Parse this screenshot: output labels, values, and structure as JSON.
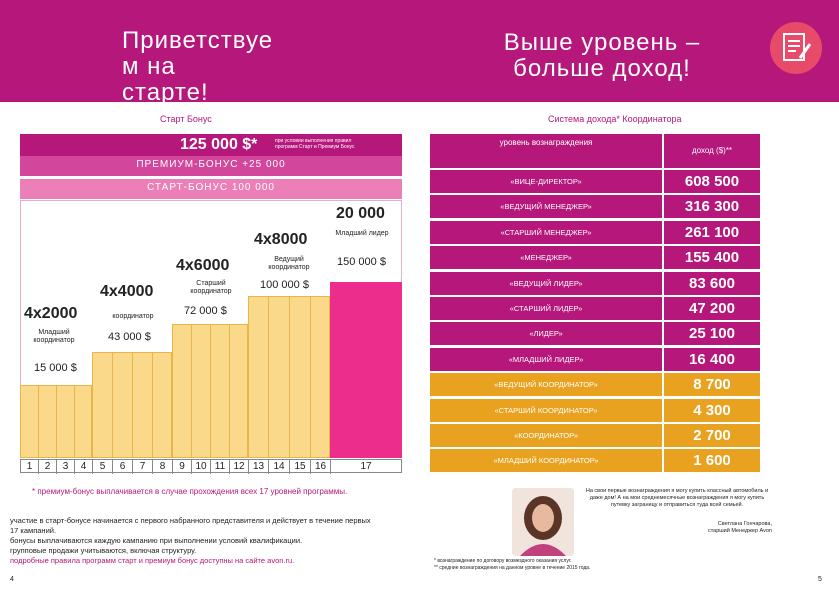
{
  "header": {
    "left_title": "Приветствуе\nм на\nстарте!",
    "right_title": "Выше уровень –\nбольше доход!",
    "icon": "document-edit-icon"
  },
  "left": {
    "section_title": "Старт Бонус",
    "bonus_amount": "125 000 $*",
    "bonus_note": "при условии выполнения правил программ Старт и Премиум Бонус",
    "premium_bar": "ПРЕМИУМ-БОНУС +25 000",
    "start_bar": "СТАРТ-БОНУС 100 000",
    "steps": [
      {
        "mult": "4x2000",
        "role": "Младший координатор",
        "amount": "15 000 $"
      },
      {
        "mult": "4x4000",
        "role": "координатор",
        "amount": "43 000 $"
      },
      {
        "mult": "4x6000",
        "role": "Старший координатор",
        "amount": "72 000 $"
      },
      {
        "mult": "4x8000",
        "role": "Ведущий координатор",
        "amount": "100 000 $"
      },
      {
        "mult": "20 000",
        "role": "Младший лидер",
        "amount": "150 000 $"
      }
    ],
    "campaigns": [
      "1",
      "2",
      "3",
      "4",
      "5",
      "6",
      "7",
      "8",
      "9",
      "10",
      "11",
      "12",
      "13",
      "14",
      "15",
      "16",
      "17"
    ],
    "footnote": "* премиум-бонус выплачивается в случае прохождения всех 17 уровней программы.",
    "notes": [
      "участие в старт-бонусе начинается с первого набранного представителя и действует в течение первых 17 кампаний.",
      "бонусы выплачиваются каждую кампанию при выполнении условий квалификации.",
      "групповые продажи учитываются, включая структуру."
    ],
    "rules_link": "подробные правила программ старт и премиум бонус доступны на сайте avon.ru.",
    "page_number": "4"
  },
  "right": {
    "section_title": "Система дохода* Координатора",
    "col_level": "уровень вознаграждения",
    "col_income": "доход ($)**",
    "rows": [
      {
        "level": "«ВИЦЕ-ДИРЕКТОР»",
        "income": "608 500",
        "tier": "pink"
      },
      {
        "level": "«ВЕДУЩИЙ МЕНЕДЖЕР»",
        "income": "316 300",
        "tier": "pink"
      },
      {
        "level": "«СТАРШИЙ МЕНЕДЖЕР»",
        "income": "261 100",
        "tier": "pink"
      },
      {
        "level": "«МЕНЕДЖЕР»",
        "income": "155 400",
        "tier": "pink"
      },
      {
        "level": "«ВЕДУЩИЙ ЛИДЕР»",
        "income": "83 600",
        "tier": "pink"
      },
      {
        "level": "«СТАРШИЙ ЛИДЕР»",
        "income": "47 200",
        "tier": "pink"
      },
      {
        "level": "«ЛИДЕР»",
        "income": "25 100",
        "tier": "pink"
      },
      {
        "level": "«МЛАДШИЙ ЛИДЕР»",
        "income": "16 400",
        "tier": "pink"
      },
      {
        "level": "«ВЕДУЩИЙ КООРДИНАТОР»",
        "income": "8 700",
        "tier": "gold"
      },
      {
        "level": "«СТАРШИЙ КООРДИНАТОР»",
        "income": "4 300",
        "tier": "gold"
      },
      {
        "level": "«КООРДИНАТОР»",
        "income": "2 700",
        "tier": "gold"
      },
      {
        "level": "«МЛАДШИЙ КООРДИНАТОР»",
        "income": "1 600",
        "tier": "gold"
      }
    ],
    "quote": "На свои первые вознаграждения я могу купить классный автомобиль и даже дом! А на мои среднемесячные вознаграждения я могу купить путевку заграницу и отправиться туда всей семьей.",
    "person_name": "Светлана Гончарова,",
    "person_title": "старший Менеджер Avon",
    "footnotes": [
      "* вознаграждение по договору возмездного оказания услуг.",
      "** средние вознаграждения на данном уровне в течение 2015 года."
    ],
    "page_number": "5"
  }
}
